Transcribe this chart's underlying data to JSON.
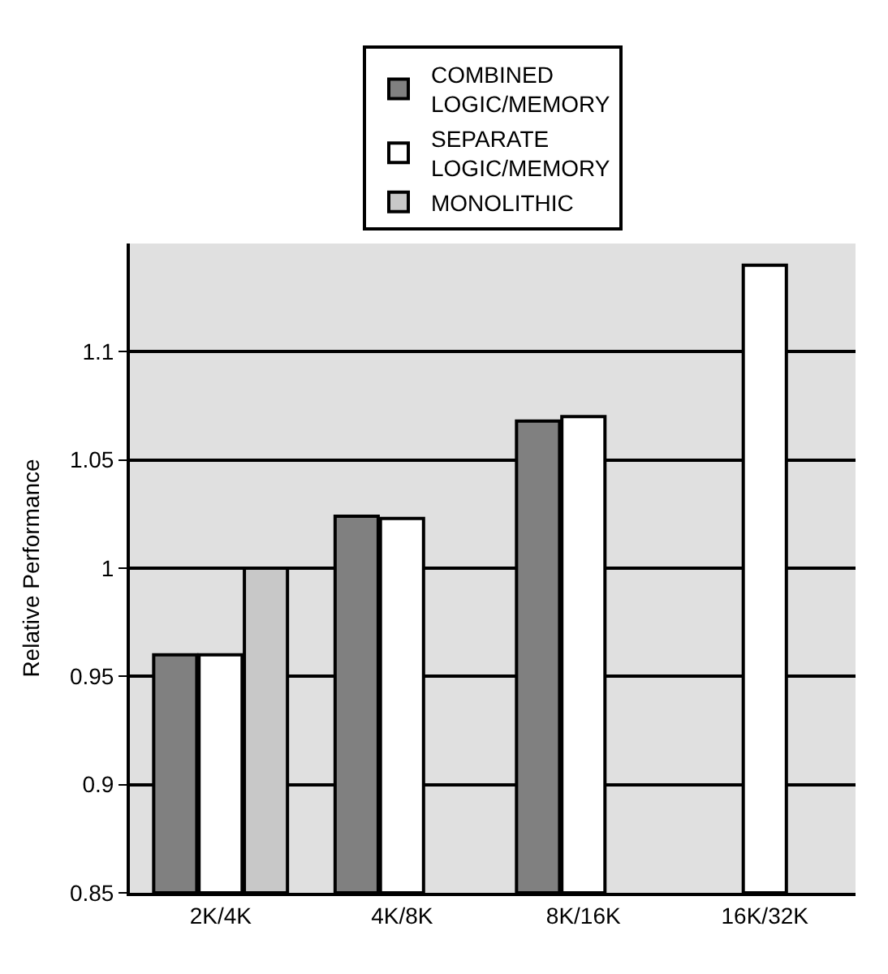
{
  "chart_data": {
    "type": "bar",
    "ylabel": "Relative Performance",
    "categories": [
      "2K/4K",
      "4K/8K",
      "8K/16K",
      "16K/32K"
    ],
    "series": [
      {
        "name": "COMBINED LOGIC/MEMORY",
        "color": "#808080",
        "values": [
          0.96,
          1.024,
          1.068,
          null
        ]
      },
      {
        "name": "SEPARATE LOGIC/MEMORY",
        "color": "#ffffff",
        "values": [
          0.96,
          1.023,
          1.07,
          1.14
        ]
      },
      {
        "name": "MONOLITHIC",
        "color": "#c8c8c8",
        "values": [
          1.0,
          null,
          null,
          null
        ]
      }
    ],
    "ylim": [
      0.85,
      1.15
    ],
    "yticks": [
      0.85,
      0.9,
      0.95,
      1,
      1.05,
      1.1
    ],
    "grid": "y",
    "legend": "top"
  }
}
